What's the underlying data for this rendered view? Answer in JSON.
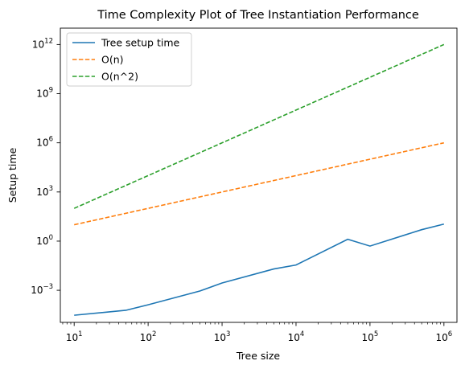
{
  "chart_data": {
    "type": "line",
    "title": "Time Complexity Plot of Tree Instantiation Performance",
    "xlabel": "Tree size",
    "ylabel": "Setup time",
    "xscale": "log",
    "yscale": "log",
    "xlim": [
      6.5,
      1500000
    ],
    "ylim": [
      1.1e-05,
      10000000000000.0
    ],
    "xticks": [
      {
        "value": 10,
        "base": "10",
        "exp": "1"
      },
      {
        "value": 100,
        "base": "10",
        "exp": "2"
      },
      {
        "value": 1000,
        "base": "10",
        "exp": "3"
      },
      {
        "value": 10000,
        "base": "10",
        "exp": "4"
      },
      {
        "value": 100000,
        "base": "10",
        "exp": "5"
      },
      {
        "value": 1000000,
        "base": "10",
        "exp": "6"
      }
    ],
    "yticks": [
      {
        "value": 0.001,
        "base": "10",
        "exp": "−3"
      },
      {
        "value": 1,
        "base": "10",
        "exp": "0"
      },
      {
        "value": 1000,
        "base": "10",
        "exp": "3"
      },
      {
        "value": 1000000,
        "base": "10",
        "exp": "6"
      },
      {
        "value": 1000000000,
        "base": "10",
        "exp": "9"
      },
      {
        "value": 1000000000000,
        "base": "10",
        "exp": "12"
      }
    ],
    "grid": false,
    "legend": "upper-left",
    "series": [
      {
        "name": "Tree setup time",
        "color": "#1f77b4",
        "dash": "solid",
        "x": [
          10,
          50,
          100,
          500,
          1000,
          5000,
          10000,
          50000,
          100000,
          500000,
          1000000
        ],
        "y": [
          3e-05,
          6e-05,
          0.00013,
          0.0009,
          0.0028,
          0.02,
          0.035,
          1.3,
          0.5,
          5,
          11
        ]
      },
      {
        "name": "O(n)",
        "color": "#ff7f0e",
        "dash": "dashed",
        "x": [
          10,
          1000000
        ],
        "y": [
          10,
          1000000
        ]
      },
      {
        "name": "O(n^2)",
        "color": "#2ca02c",
        "dash": "dashed",
        "x": [
          10,
          1000000
        ],
        "y": [
          100,
          1000000000000
        ]
      }
    ]
  }
}
